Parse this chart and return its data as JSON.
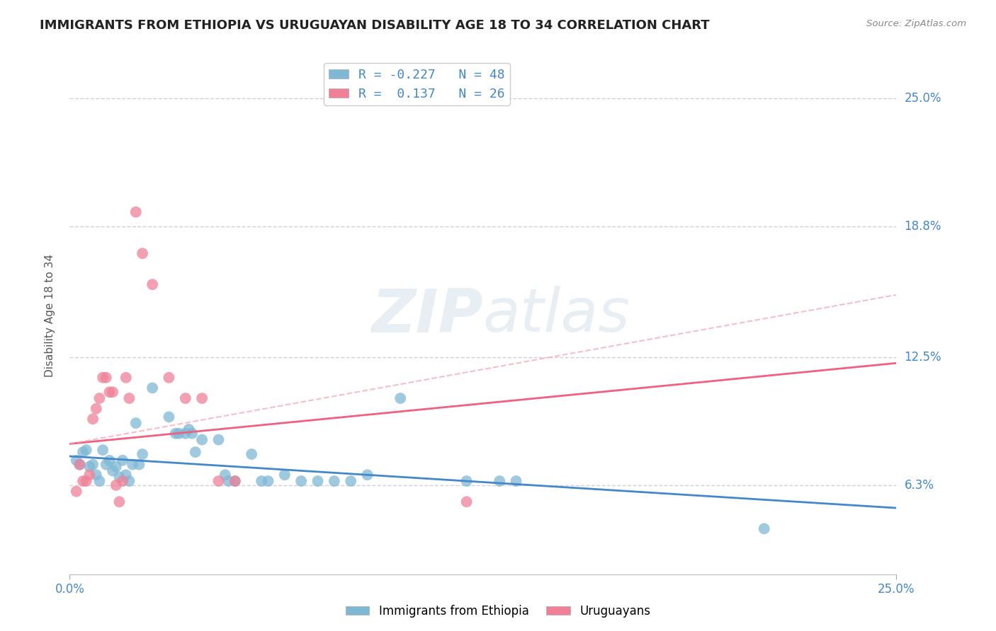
{
  "title": "IMMIGRANTS FROM ETHIOPIA VS URUGUAYAN DISABILITY AGE 18 TO 34 CORRELATION CHART",
  "source": "Source: ZipAtlas.com",
  "ylabel_label": "Disability Age 18 to 34",
  "xmin": 0.0,
  "xmax": 0.25,
  "ymin": 0.02,
  "ymax": 0.27,
  "watermark": "ZIPatlas",
  "y_tick_vals": [
    0.063,
    0.125,
    0.188,
    0.25
  ],
  "y_tick_labels": [
    "6.3%",
    "12.5%",
    "18.8%",
    "25.0%"
  ],
  "x_tick_vals": [
    0.0,
    0.25
  ],
  "x_tick_labels": [
    "0.0%",
    "25.0%"
  ],
  "blue_scatter": [
    [
      0.002,
      0.075
    ],
    [
      0.003,
      0.073
    ],
    [
      0.004,
      0.079
    ],
    [
      0.005,
      0.08
    ],
    [
      0.006,
      0.072
    ],
    [
      0.007,
      0.073
    ],
    [
      0.008,
      0.068
    ],
    [
      0.009,
      0.065
    ],
    [
      0.01,
      0.08
    ],
    [
      0.011,
      0.073
    ],
    [
      0.012,
      0.075
    ],
    [
      0.013,
      0.07
    ],
    [
      0.014,
      0.072
    ],
    [
      0.015,
      0.067
    ],
    [
      0.016,
      0.075
    ],
    [
      0.017,
      0.068
    ],
    [
      0.018,
      0.065
    ],
    [
      0.019,
      0.073
    ],
    [
      0.02,
      0.093
    ],
    [
      0.021,
      0.073
    ],
    [
      0.022,
      0.078
    ],
    [
      0.025,
      0.11
    ],
    [
      0.03,
      0.096
    ],
    [
      0.032,
      0.088
    ],
    [
      0.033,
      0.088
    ],
    [
      0.035,
      0.088
    ],
    [
      0.036,
      0.09
    ],
    [
      0.037,
      0.088
    ],
    [
      0.038,
      0.079
    ],
    [
      0.04,
      0.085
    ],
    [
      0.045,
      0.085
    ],
    [
      0.047,
      0.068
    ],
    [
      0.048,
      0.065
    ],
    [
      0.05,
      0.065
    ],
    [
      0.055,
      0.078
    ],
    [
      0.058,
      0.065
    ],
    [
      0.06,
      0.065
    ],
    [
      0.065,
      0.068
    ],
    [
      0.07,
      0.065
    ],
    [
      0.075,
      0.065
    ],
    [
      0.08,
      0.065
    ],
    [
      0.085,
      0.065
    ],
    [
      0.09,
      0.068
    ],
    [
      0.1,
      0.105
    ],
    [
      0.12,
      0.065
    ],
    [
      0.13,
      0.065
    ],
    [
      0.135,
      0.065
    ],
    [
      0.21,
      0.042
    ]
  ],
  "pink_scatter": [
    [
      0.002,
      0.06
    ],
    [
      0.003,
      0.073
    ],
    [
      0.004,
      0.065
    ],
    [
      0.005,
      0.065
    ],
    [
      0.006,
      0.068
    ],
    [
      0.007,
      0.095
    ],
    [
      0.008,
      0.1
    ],
    [
      0.009,
      0.105
    ],
    [
      0.01,
      0.115
    ],
    [
      0.011,
      0.115
    ],
    [
      0.012,
      0.108
    ],
    [
      0.013,
      0.108
    ],
    [
      0.014,
      0.063
    ],
    [
      0.015,
      0.055
    ],
    [
      0.016,
      0.065
    ],
    [
      0.017,
      0.115
    ],
    [
      0.018,
      0.105
    ],
    [
      0.02,
      0.195
    ],
    [
      0.022,
      0.175
    ],
    [
      0.025,
      0.16
    ],
    [
      0.03,
      0.115
    ],
    [
      0.035,
      0.105
    ],
    [
      0.04,
      0.105
    ],
    [
      0.045,
      0.065
    ],
    [
      0.05,
      0.065
    ],
    [
      0.12,
      0.055
    ]
  ],
  "blue_line": {
    "x0": 0.0,
    "y0": 0.077,
    "x1": 0.25,
    "y1": 0.052
  },
  "pink_line_solid": {
    "x0": 0.0,
    "y0": 0.083,
    "x1": 0.25,
    "y1": 0.122
  },
  "pink_line_dash": {
    "x0": 0.0,
    "y0": 0.083,
    "x1": 0.25,
    "y1": 0.155
  },
  "scatter_blue_color": "#7eb8d4",
  "scatter_pink_color": "#f08098",
  "line_blue_color": "#4488cc",
  "line_pink_solid_color": "#f06080",
  "line_pink_dash_color": "#f8a0b0",
  "grid_color": "#d0d0dc",
  "background_color": "#ffffff",
  "title_fontsize": 13,
  "axis_label_fontsize": 11,
  "tick_fontsize": 12
}
